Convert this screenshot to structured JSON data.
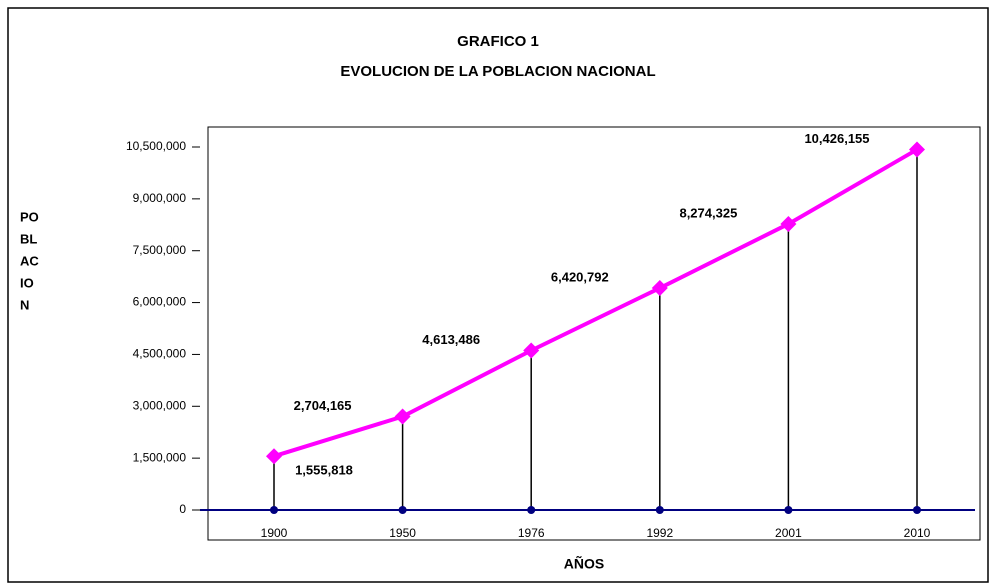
{
  "chart_data": {
    "type": "line",
    "title": [
      "GRAFICO 1",
      "EVOLUCION DE LA POBLACION NACIONAL"
    ],
    "ylabel": [
      "PO",
      "BL",
      "AC",
      "IO",
      "N"
    ],
    "xlabel": "AÑOS",
    "categories": [
      "1900",
      "1950",
      "1976",
      "1992",
      "2001",
      "2010"
    ],
    "values": [
      1555818,
      2704165,
      4613486,
      6420792,
      8274325,
      10426155
    ],
    "value_labels": [
      "1,555,818",
      "2,704,165",
      "4,613,486",
      "6,420,792",
      "8,274,325",
      "10,426,155"
    ],
    "color": "#ff00ff",
    "ylim": [
      0,
      10500000
    ],
    "yticks": [
      0,
      {
        "value": 1500000,
        "label": "1,500,000"
      },
      {
        "value": 3000000,
        "label": "3,000,000"
      },
      {
        "value": 4500000,
        "label": "4,500,000"
      },
      {
        "value": 6000000,
        "label": "6,000,000"
      },
      {
        "value": 7500000,
        "label": "7,500,000"
      },
      {
        "value": 9000000,
        "label": "9,000,000"
      },
      {
        "value": 10500000,
        "label": "10,500,000"
      }
    ]
  }
}
